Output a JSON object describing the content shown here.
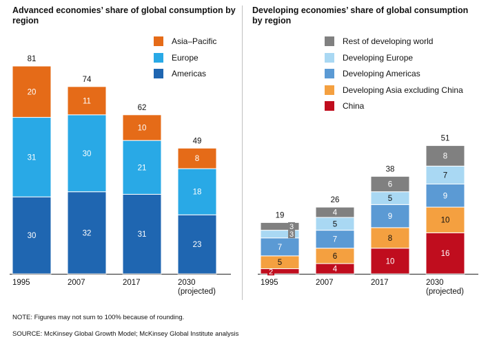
{
  "note": "NOTE: Figures may not sum to 100% because of rounding.",
  "source": "SOURCE:  McKinsey Global Growth Model; McKinsey Global Institute analysis",
  "chart_data": [
    {
      "type": "bar",
      "stacked": true,
      "title": "Advanced economies’ share of global consumption by region",
      "categories": [
        "1995",
        "2007",
        "2017",
        "2030 (projected)"
      ],
      "category_labels": [
        [
          "1995"
        ],
        [
          "2007"
        ],
        [
          "2017"
        ],
        [
          "2030",
          "(projected)"
        ]
      ],
      "totals": [
        81,
        74,
        62,
        49
      ],
      "ylim": [
        0,
        81
      ],
      "series": [
        {
          "name": "Americas",
          "color": "#1f66b1",
          "values": [
            30,
            32,
            31,
            23
          ]
        },
        {
          "name": "Europe",
          "color": "#29a9e6",
          "values": [
            31,
            30,
            21,
            18
          ]
        },
        {
          "name": "Asia–Pacific",
          "color": "#e56b18",
          "values": [
            20,
            11,
            10,
            8
          ]
        }
      ],
      "legend": [
        "Asia–Pacific",
        "Europe",
        "Americas"
      ],
      "legend_colors": [
        "#e56b18",
        "#29a9e6",
        "#1f66b1"
      ]
    },
    {
      "type": "bar",
      "stacked": true,
      "title": "Developing economies’ share of global consumption by region",
      "categories": [
        "1995",
        "2007",
        "2017",
        "2030 (projected)"
      ],
      "category_labels": [
        [
          "1995"
        ],
        [
          "2007"
        ],
        [
          "2017"
        ],
        [
          "2030",
          "(projected)"
        ]
      ],
      "totals": [
        19,
        26,
        38,
        51
      ],
      "ylim": [
        0,
        81
      ],
      "series": [
        {
          "name": "China",
          "color": "#c00d1e",
          "values": [
            2,
            4,
            10,
            16
          ]
        },
        {
          "name": "Developing Asia excluding China",
          "color": "#f4a040",
          "values": [
            5,
            6,
            8,
            10
          ]
        },
        {
          "name": "Developing Americas",
          "color": "#5b9ad4",
          "values": [
            7,
            7,
            9,
            9
          ]
        },
        {
          "name": "Developing Europe",
          "color": "#a9d8f3",
          "values": [
            3,
            5,
            5,
            7
          ]
        },
        {
          "name": "Rest of developing world",
          "color": "#808080",
          "values": [
            3,
            4,
            6,
            8
          ]
        }
      ],
      "legend": [
        "Rest of developing world",
        "Developing Europe",
        "Developing Americas",
        "Developing Asia excluding China",
        "China"
      ],
      "legend_colors": [
        "#808080",
        "#a9d8f3",
        "#5b9ad4",
        "#f4a040",
        "#c00d1e"
      ]
    }
  ]
}
